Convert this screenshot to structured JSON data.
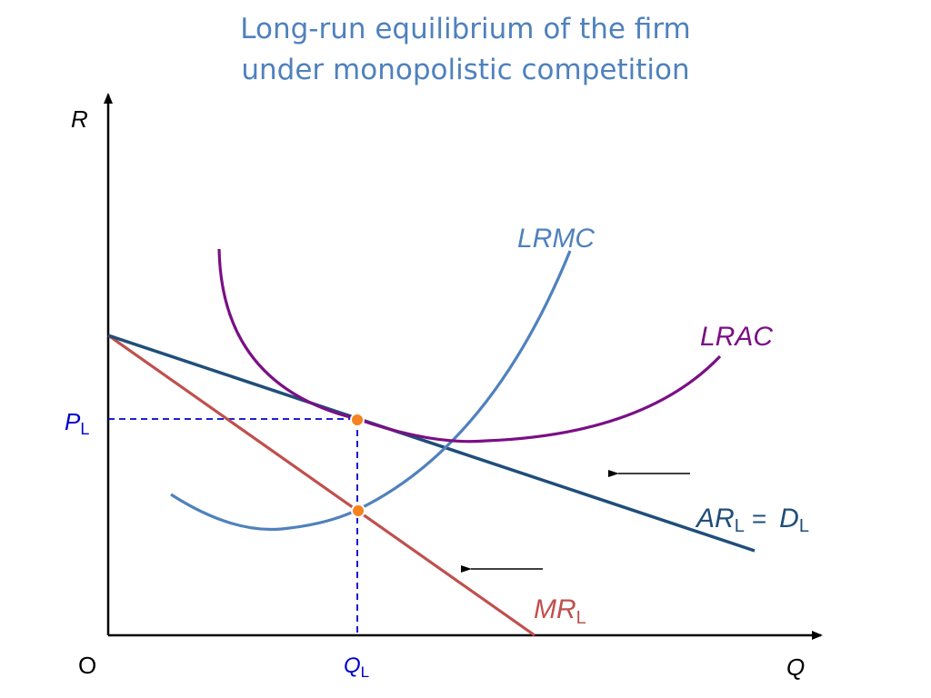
{
  "title": {
    "line1": "Long-run equilibrium of the firm",
    "line2": "under monopolistic competition",
    "color": "#4f81bd"
  },
  "axes": {
    "y_label": "R",
    "x_label": "Q",
    "origin_label": "O"
  },
  "markers": {
    "price": {
      "main": "P",
      "sub": "L"
    },
    "quantity": {
      "main": "Q",
      "sub": "L"
    }
  },
  "curves": {
    "lrmc": {
      "label": "LRMC",
      "color": "#4f81bd"
    },
    "lrac": {
      "label": "LRAC",
      "color": "#7b0f85"
    },
    "demand": {
      "label_main1": "AR",
      "label_sub1": "L",
      "label_eq": "=",
      "label_main2": "D",
      "label_sub2": "L",
      "color": "#1f4e79"
    },
    "mr": {
      "label_main": "MR",
      "label_sub": "L",
      "color": "#c0504d"
    }
  },
  "colors": {
    "axis": "#000000",
    "guide": "#0000cc",
    "point": "#f5821f",
    "arrow": "#000000"
  }
}
